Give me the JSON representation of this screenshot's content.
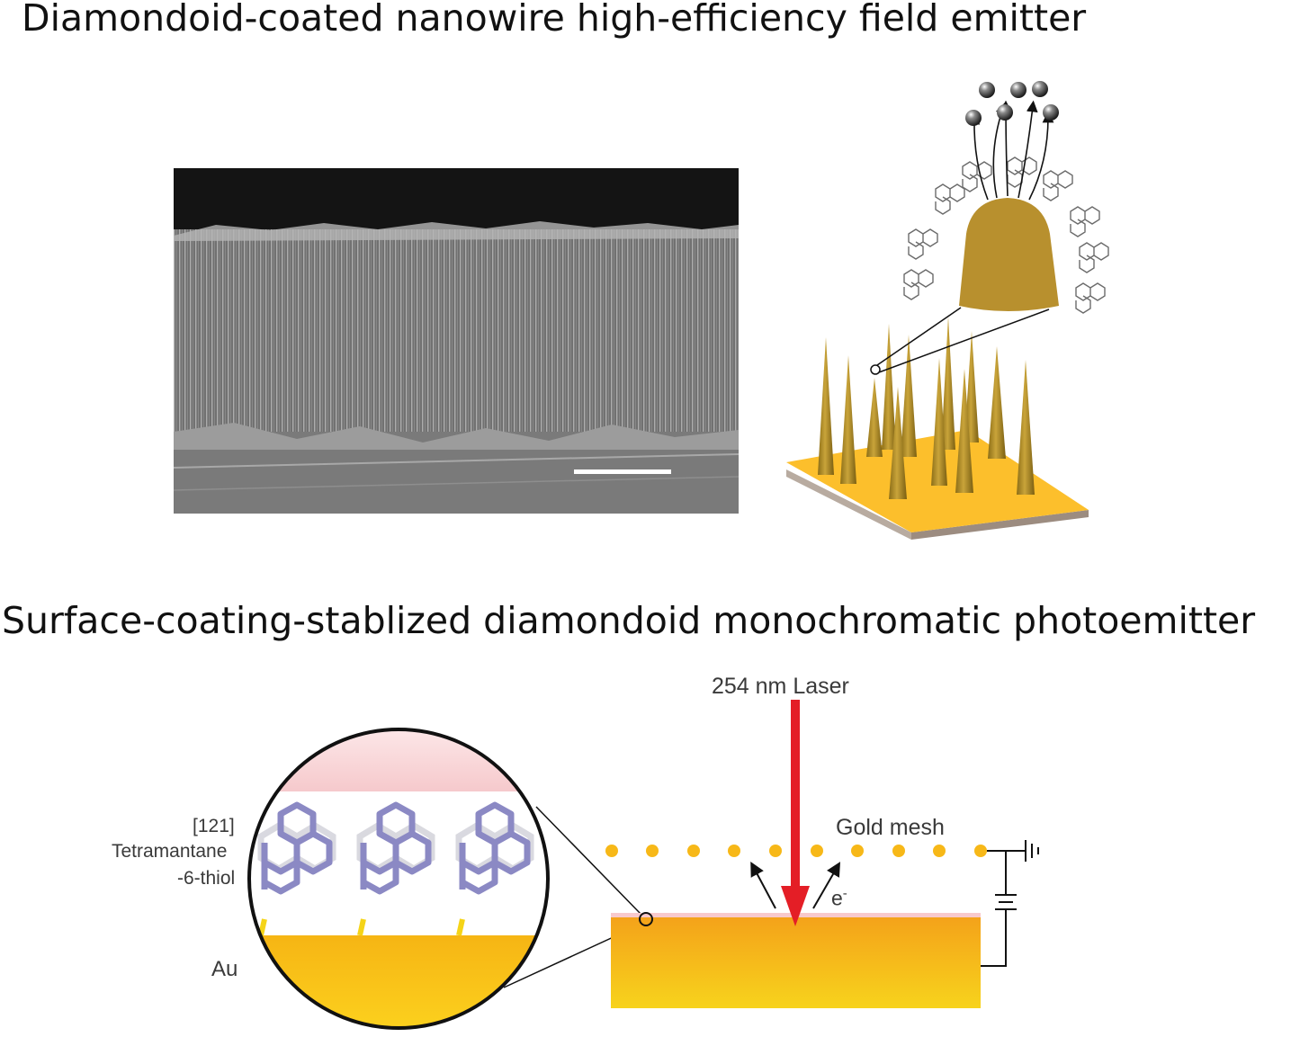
{
  "panel_top": {
    "title": "Diamondoid-coated nanowire high-efficiency field emitter"
  },
  "panel_bottom": {
    "title": "Surface-coating-stablized diamondoid monochromatic photoemitter",
    "labels": {
      "laser": "254 nm Laser",
      "mesh": "Gold mesh",
      "electron": "e",
      "electron_sup": "-",
      "molecule_line1": "[121]",
      "molecule_line2": "Tetramantane",
      "molecule_line3": "-6-thiol",
      "substrate": "Au"
    }
  },
  "colors": {
    "gold_top": "#f4a11a",
    "gold_bottom": "#f7d31c",
    "laser_red": "#e41e26",
    "mesh_dot": "#f7b818",
    "molecule": "#8b89c4",
    "tip_brown": "#b8902e"
  }
}
